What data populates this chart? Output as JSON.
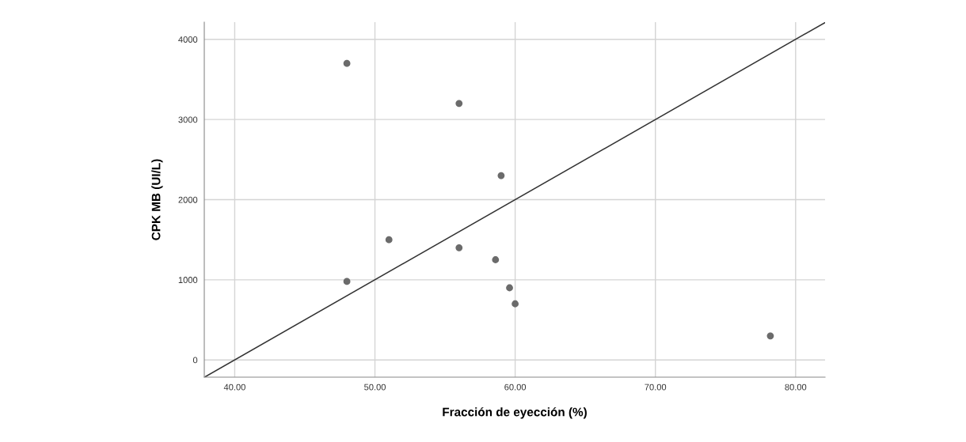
{
  "chart_data": {
    "type": "scatter",
    "xlabel": "Fracción de eyección (%)",
    "ylabel": "CPK MB (UI/L)",
    "xlim": [
      37.83,
      82.1
    ],
    "ylim": [
      -215,
      4215
    ],
    "xticks": [
      {
        "value": 40,
        "label": "40.00"
      },
      {
        "value": 50,
        "label": "50.00"
      },
      {
        "value": 60,
        "label": "60.00"
      },
      {
        "value": 70,
        "label": "70.00"
      },
      {
        "value": 80,
        "label": "80.00"
      }
    ],
    "yticks": [
      0,
      1000,
      2000,
      3000,
      4000
    ],
    "grid": true,
    "series": [
      {
        "color": "#6b6b6b",
        "marker": "circle",
        "x": [
          48,
          56,
          59,
          51,
          56,
          58.6,
          48,
          59.6,
          60,
          78.2
        ],
        "values": [
          3700,
          3200,
          2300,
          1500,
          1400,
          1250,
          980,
          900,
          700,
          300
        ]
      },
      {
        "type": "line",
        "color": "#333333",
        "x": [
          37.9,
          82.1
        ],
        "values": [
          -210,
          4210
        ]
      }
    ]
  }
}
